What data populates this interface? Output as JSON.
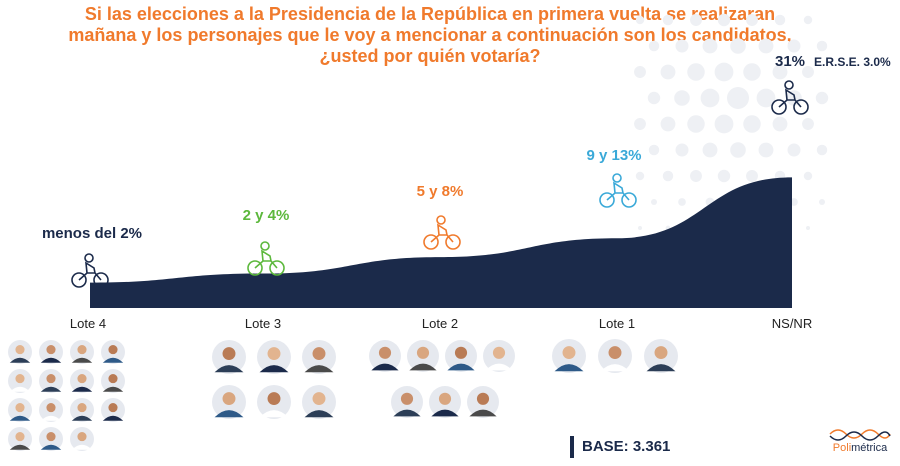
{
  "title": "Si las elecciones a la Presidencia de la República en primera vuelta se realizaran mañana y los personajes que le voy a mencionar a continuación son los candidatos, ¿usted por quién votaría?",
  "chart_data": {
    "type": "area",
    "categories": [
      "Lote 4",
      "Lote 3",
      "Lote 2",
      "Lote 1",
      "NS/NR"
    ],
    "value_labels": [
      "menos del 2%",
      "2 y 4%",
      "5 y 8%",
      "9 y 13%",
      "31%"
    ],
    "values": [
      2,
      4,
      8,
      13,
      31
    ],
    "label_colors": [
      "#1b2a4a",
      "#5cb83c",
      "#f07a2c",
      "#3aa9d8",
      "#1b2a4a"
    ],
    "area_color": "#1b2a4a",
    "annotation": "E.R.S.E. 3.0%",
    "candidate_counts": [
      15,
      6,
      7,
      3,
      0
    ]
  },
  "base_label": "BASE: 3.361",
  "logo": {
    "part1": "Poli",
    "part2": "métrica"
  },
  "colors": {
    "orange": "#f07a2c",
    "navy": "#1b2a4a",
    "green": "#5cb83c",
    "blue": "#3aa9d8"
  },
  "icons": [
    "cyclist-icon",
    "candidate-photo-icon"
  ]
}
